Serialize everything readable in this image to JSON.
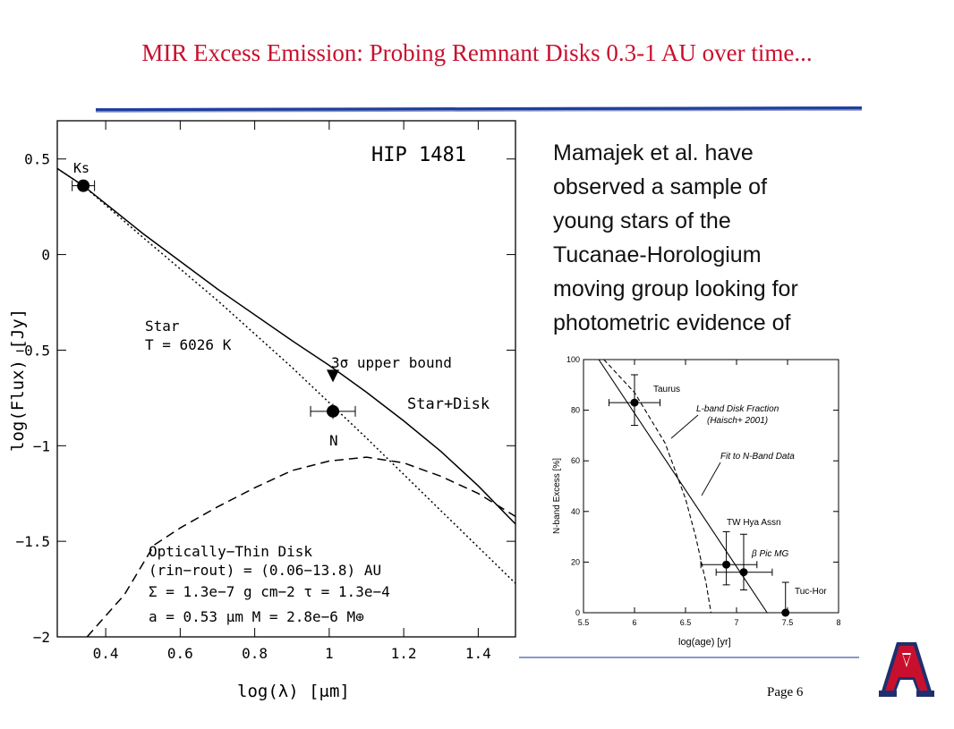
{
  "slide": {
    "title": "MIR Excess Emission:  Probing Remnant Disks 0.3-1 AU over time...",
    "page": "Page 6",
    "body_lines": [
      "Mamajek et al. have",
      "observed a sample of",
      "young stars  of the",
      "Tucanae-Horologium",
      "moving group looking for",
      "photometric evidence of"
    ],
    "colors": {
      "title": "#c8102e",
      "rule": "#1f3fa0",
      "logo_red": "#c8102e",
      "logo_blue": "#1f2f6e"
    },
    "logo_icon": "university-of-arizona-logo"
  },
  "chart_data": [
    {
      "type": "line",
      "panel_title": "HIP 1481",
      "xlabel": "log(λ)  [μm]",
      "ylabel": "log(Flux)  [Jy]",
      "xlim": [
        0.27,
        1.5
      ],
      "ylim": [
        -2.0,
        0.7
      ],
      "xticks": [
        "0.4",
        "0.6",
        "0.8",
        "1",
        "1.2",
        "1.4"
      ],
      "yticks": [
        "0.5",
        "0",
        "-0.5",
        "-1",
        "-1.5",
        "-2"
      ],
      "series": [
        {
          "style": "dotted",
          "x": [
            0.27,
            0.34,
            0.5,
            0.7,
            0.9,
            1.1,
            1.3,
            1.5
          ],
          "y": [
            0.45,
            0.36,
            0.09,
            -0.24,
            -0.59,
            -0.96,
            -1.34,
            -1.72
          ]
        },
        {
          "name": "Star+Disk",
          "style": "solid",
          "x": [
            0.27,
            0.34,
            0.5,
            0.7,
            0.9,
            1.0,
            1.1,
            1.2,
            1.3,
            1.4,
            1.5
          ],
          "y": [
            0.45,
            0.36,
            0.11,
            -0.18,
            -0.45,
            -0.58,
            -0.72,
            -0.87,
            -1.03,
            -1.21,
            -1.41
          ]
        },
        {
          "style": "dashed",
          "x": [
            0.35,
            0.45,
            0.53,
            0.6,
            0.7,
            0.8,
            0.9,
            1.0,
            1.1,
            1.2,
            1.3,
            1.4,
            1.5
          ],
          "y": [
            -2.0,
            -1.78,
            -1.52,
            -1.43,
            -1.32,
            -1.22,
            -1.13,
            -1.08,
            -1.06,
            -1.09,
            -1.16,
            -1.25,
            -1.37
          ]
        }
      ],
      "points": [
        {
          "label": "Ks",
          "x": 0.34,
          "y": 0.36,
          "xerr": 0.03,
          "yerr": 0.03
        },
        {
          "label": "N",
          "x": 1.01,
          "y": -0.82,
          "xerr": 0.06,
          "yerr": 0.04
        }
      ],
      "upper_limit": {
        "x": 1.01,
        "y": -0.64,
        "label": "3σ  upper bound"
      },
      "annotations": {
        "star": [
          "Star",
          "T = 6026 K"
        ],
        "star_disk": "Star+Disk",
        "disk": [
          "Optically−Thin Disk",
          "(rin−rout) = (0.06−13.8) AU",
          "Σ = 1.3e−7 g cm−2   τ = 1.3e−4",
          "a = 0.53 μm         M = 2.8e−6 M⊕"
        ]
      }
    },
    {
      "type": "scatter",
      "xlabel": "log(age) [yr]",
      "ylabel": "N-band Excess [%]",
      "xlim": [
        5.5,
        8
      ],
      "ylim": [
        0,
        100
      ],
      "xticks": [
        "5.5",
        "6",
        "6.5",
        "7",
        "7.5",
        "8"
      ],
      "yticks": [
        "0",
        "20",
        "40",
        "60",
        "80",
        "100"
      ],
      "points": [
        {
          "label": "Taurus",
          "x": 6.0,
          "y": 83,
          "xlo": 5.75,
          "xhi": 6.25,
          "ylo": 74,
          "yhi": 94
        },
        {
          "label": "TW Hya Assn",
          "x": 6.9,
          "y": 19,
          "xlo": 6.65,
          "xhi": 7.2,
          "ylo": 11,
          "yhi": 32
        },
        {
          "label": "β Pic MG",
          "x": 7.07,
          "y": 16,
          "xlo": 6.8,
          "xhi": 7.35,
          "ylo": 9,
          "yhi": 31
        },
        {
          "label": "Tuc-Hor",
          "x": 7.48,
          "y": 0,
          "xlo": 7.48,
          "xhi": 7.48,
          "ylo": 0,
          "yhi": 12
        }
      ],
      "lines": [
        {
          "name": "Fit to N-Band Data",
          "style": "solid",
          "x": [
            5.65,
            7.3
          ],
          "y": [
            100,
            0
          ]
        },
        {
          "name": "L-band Disk Fraction (Haisch+ 2001)",
          "style": "dashed",
          "x": [
            5.7,
            6.0,
            6.3,
            6.5,
            6.6,
            6.7,
            6.75
          ],
          "y": [
            100,
            87,
            67,
            45,
            30,
            12,
            0
          ]
        }
      ],
      "annotations": {
        "lband": [
          "L-band Disk Fraction",
          "(Haisch+ 2001)"
        ],
        "fit": "Fit to N-Band Data"
      }
    }
  ]
}
